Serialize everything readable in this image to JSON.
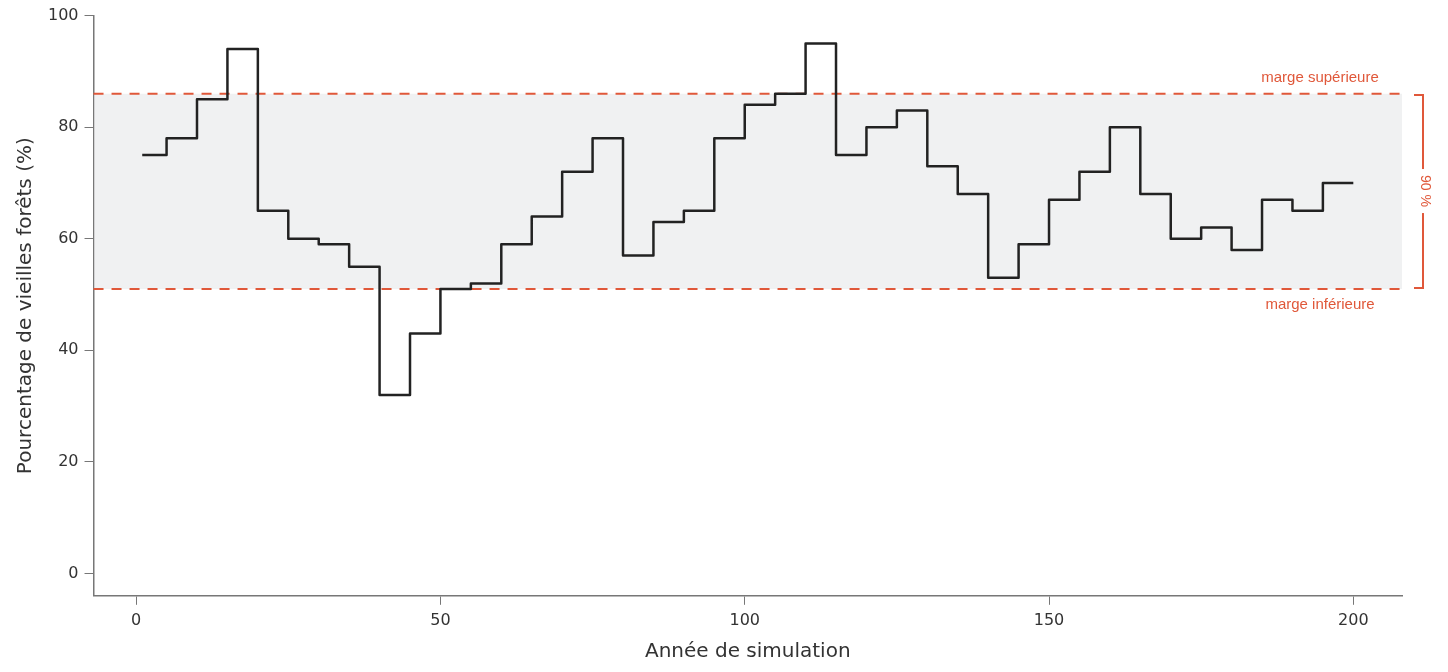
{
  "chart_data": {
    "type": "step",
    "xlabel": "Année de simulation",
    "ylabel": "Pourcentage de vieilles forêts (%)",
    "x": [
      1,
      5,
      10,
      15,
      20,
      25,
      30,
      35,
      40,
      45,
      50,
      55,
      60,
      65,
      70,
      75,
      80,
      85,
      90,
      95,
      100,
      105,
      110,
      115,
      120,
      125,
      130,
      135,
      140,
      145,
      150,
      155,
      160,
      165,
      170,
      175,
      180,
      185,
      190,
      195,
      200
    ],
    "series": [
      {
        "color": "#222222",
        "values": [
          75,
          78,
          85,
          94,
          65,
          60,
          59,
          55,
          32,
          43,
          51,
          52,
          59,
          64,
          72,
          78,
          57,
          63,
          65,
          78,
          84,
          86,
          95,
          75,
          80,
          83,
          73,
          68,
          53,
          59,
          67,
          72,
          80,
          68,
          60,
          62,
          58,
          67,
          65,
          70,
          70
        ]
      }
    ],
    "xlim": [
      -7,
      208
    ],
    "xticks": [
      0,
      50,
      100,
      150,
      200
    ],
    "ylim": [
      -4,
      100
    ],
    "yticks": [
      0,
      20,
      40,
      60,
      80,
      100
    ],
    "grid": false,
    "legend": false,
    "marker": "none",
    "line_style": "solid",
    "bands": [
      {
        "axis": "y",
        "from": 51,
        "to": 86,
        "color": "#f0f1f2",
        "label": "90 %"
      }
    ],
    "ref_lines": [
      {
        "axis": "y",
        "value": 86,
        "label": "marge supérieure",
        "color": "#e0583a",
        "line_style": "dashed"
      },
      {
        "axis": "y",
        "value": 51,
        "label": "marge inférieure",
        "color": "#e0583a",
        "line_style": "dashed"
      }
    ]
  }
}
